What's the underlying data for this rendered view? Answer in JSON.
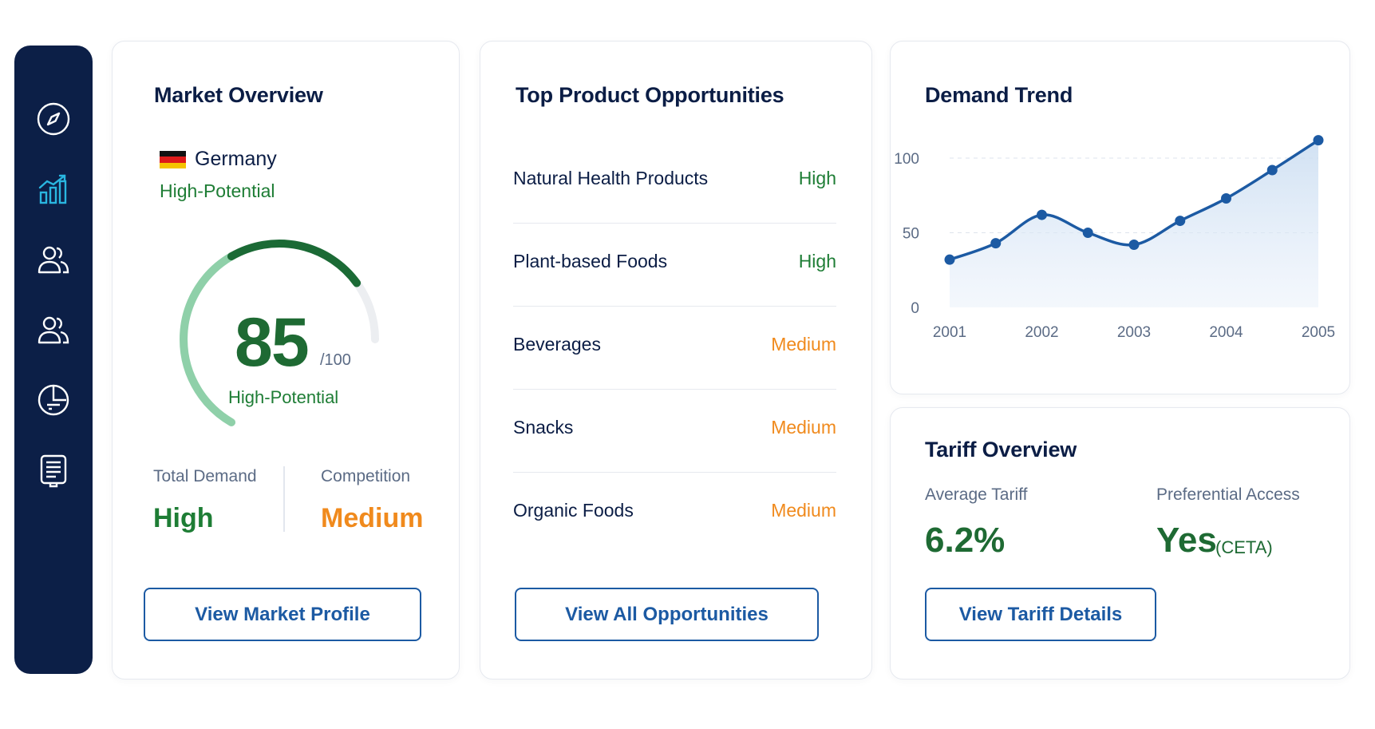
{
  "sidebar": {
    "items": [
      {
        "icon": "compass-icon",
        "active": false
      },
      {
        "icon": "bar-chart-icon",
        "active": true
      },
      {
        "icon": "users-icon",
        "active": false
      },
      {
        "icon": "users-alt-icon",
        "active": false
      },
      {
        "icon": "pie-chart-icon",
        "active": false
      },
      {
        "icon": "document-icon",
        "active": false
      }
    ]
  },
  "market": {
    "title": "Market Overview",
    "country": "Germany",
    "status": "High-Potential",
    "score": "85",
    "score_max": "/100",
    "score_fraction": 0.85,
    "gauge_label": "High-Potential",
    "total_demand_label": "Total Demand",
    "total_demand_value": "High",
    "competition_label": "Competition",
    "competition_value": "Medium",
    "button": "View Market Profile"
  },
  "opportunities": {
    "title": "Top Product Opportunities",
    "items": [
      {
        "name": "Natural Health Products",
        "level": "High"
      },
      {
        "name": "Plant-based Foods",
        "level": "High"
      },
      {
        "name": "Beverages",
        "level": "Medium"
      },
      {
        "name": "Snacks",
        "level": "Medium"
      },
      {
        "name": "Organic Foods",
        "level": "Medium"
      }
    ],
    "button": "View All Opportunities"
  },
  "demand": {
    "title": "Demand Trend"
  },
  "chart_data": {
    "type": "line",
    "title": "Demand Trend",
    "x": [
      2001,
      2001.5,
      2002,
      2002.5,
      2003,
      2003.5,
      2004,
      2004.5,
      2005
    ],
    "values": [
      32,
      43,
      62,
      50,
      42,
      58,
      73,
      92,
      112
    ],
    "x_ticks": [
      "2001",
      "2002",
      "2003",
      "2004",
      "2005"
    ],
    "y_ticks": [
      "0",
      "50",
      "100"
    ],
    "ylim": [
      0,
      115
    ],
    "grid": true,
    "fill": "area",
    "color": "#1c5aa3"
  },
  "tariff": {
    "title": "Tariff Overview",
    "avg_label": "Average Tariff",
    "avg_value": "6.2%",
    "pref_label": "Preferential Access",
    "pref_value": "Yes",
    "pref_note": "(CETA)",
    "button": "View Tariff Details"
  },
  "colors": {
    "sidebar": "#0c1f47",
    "accent": "#1c5aa3",
    "green": "#1e7d35",
    "orange": "#f08a1d",
    "active_icon": "#29b6e0"
  }
}
